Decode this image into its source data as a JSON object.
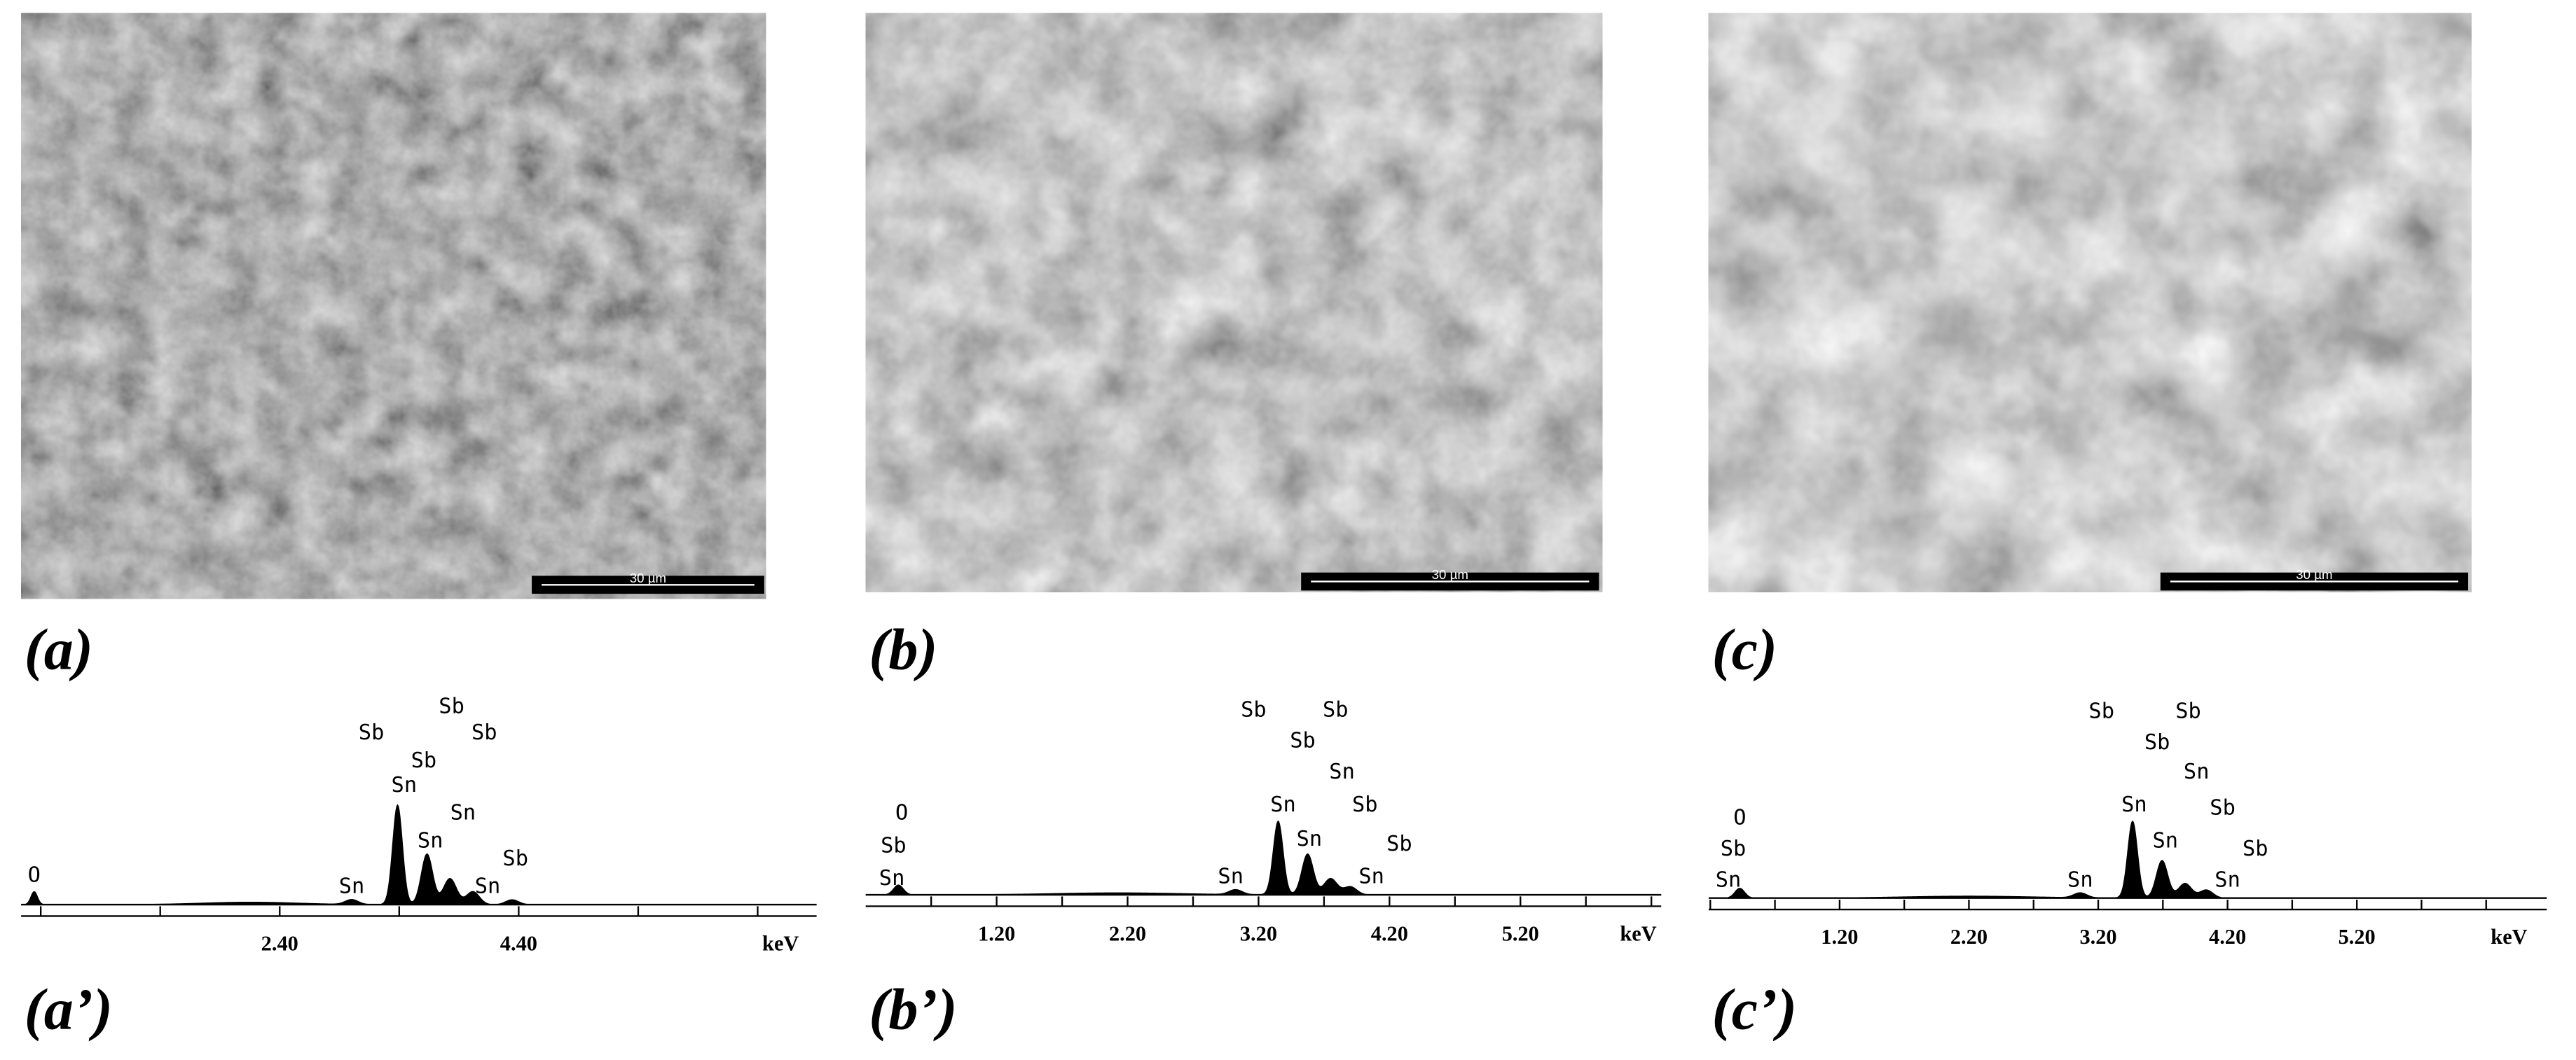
{
  "panels": [
    {
      "label": "(a)",
      "scale_bar": "30 µm",
      "spectrum": {
        "label": "(a’)",
        "unit": "keV",
        "ticks": [
          "2.40",
          "4.40"
        ],
        "peak_labels": [
          "O",
          "Sb",
          "Sb",
          "Sb",
          "Sb",
          "Sn",
          "Sn",
          "Sn",
          "Sn",
          "Sn",
          "Sb"
        ]
      }
    },
    {
      "label": "(b)",
      "scale_bar": "30 µm",
      "spectrum": {
        "label": "(b’)",
        "unit": "keV",
        "ticks": [
          "1.20",
          "2.20",
          "3.20",
          "4.20",
          "5.20"
        ],
        "peak_labels": [
          "O",
          "Sb",
          "Sn",
          "Sb",
          "Sb",
          "Sb",
          "Sn",
          "Sn",
          "Sb",
          "Sn",
          "Sb",
          "Sn",
          "Sn"
        ]
      }
    },
    {
      "label": "(c)",
      "scale_bar": "30 µm",
      "spectrum": {
        "label": "(c’)",
        "unit": "keV",
        "ticks": [
          "1.20",
          "2.20",
          "3.20",
          "4.20",
          "5.20"
        ],
        "peak_labels": [
          "O",
          "Sb",
          "Sn",
          "Sb",
          "Sb",
          "Sb",
          "Sn",
          "Sn",
          "Sb",
          "Sn",
          "Sb",
          "Sn",
          "Sn"
        ]
      }
    }
  ]
}
